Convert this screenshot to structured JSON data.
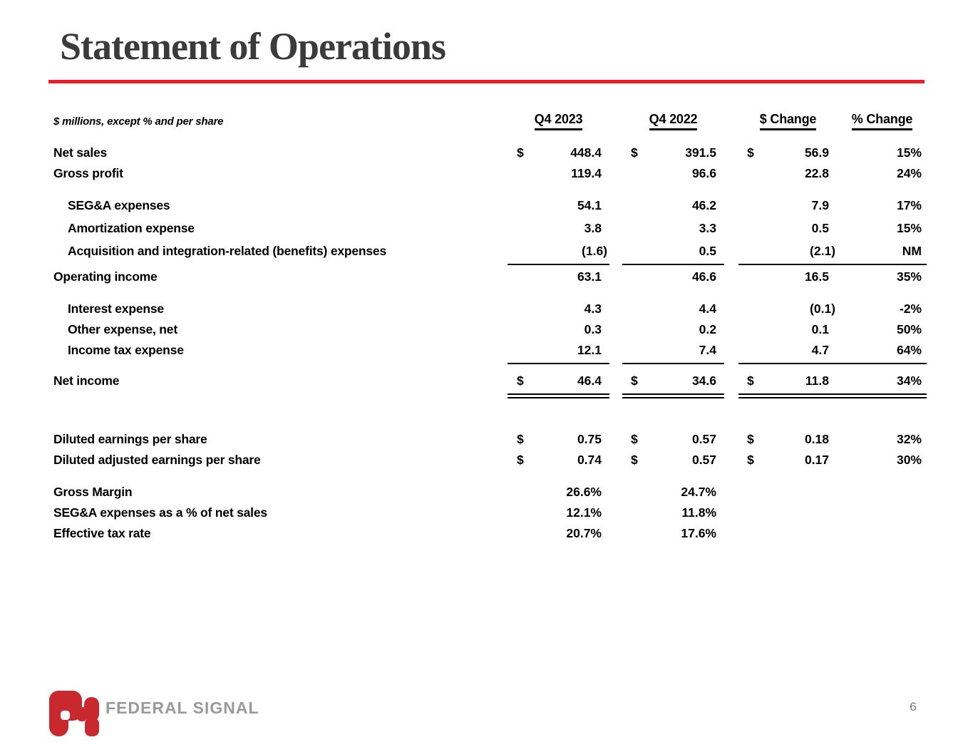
{
  "slide": {
    "title": "Statement of Operations",
    "page_number": "6",
    "accent_red": "#ee1c25",
    "logo": {
      "brand": "FEDERAL SIGNAL",
      "mark_color": "#c9292e",
      "text_color": "#9a9a9a"
    }
  },
  "table": {
    "note": "$ millions, except % and per share",
    "columns": [
      "Q4 2023",
      "Q4 2022",
      "$ Change",
      "% Change"
    ],
    "rows": [
      {
        "label": "Net sales",
        "d1": "$",
        "v1": "448.4",
        "d2": "$",
        "v2": "391.5",
        "d3": "$",
        "v3": "56.9",
        "v4": "15%"
      },
      {
        "label": "Gross profit",
        "v1": "119.4",
        "v2": "96.6",
        "v3": "22.8",
        "v4": "24%"
      },
      {
        "label": "SEG&A expenses",
        "indent": true,
        "gap": "md",
        "v1": "54.1",
        "v2": "46.2",
        "v3": "7.9",
        "v4": "17%"
      },
      {
        "label": "Amortization expense",
        "indent": true,
        "gap": "xs",
        "v1": "3.8",
        "v2": "3.3",
        "v3": "0.5",
        "v4": "15%"
      },
      {
        "label": "Acquisition and integration-related (benefits) expenses",
        "indent": true,
        "gap": "xs",
        "v1": "(1.6)",
        "v2": "0.5",
        "v3": "(2.1)",
        "v4": "NM",
        "rule_after": "single"
      },
      {
        "label": "Operating income",
        "v1": "63.1",
        "v2": "46.6",
        "v3": "16.5",
        "v4": "35%"
      },
      {
        "label": "Interest expense",
        "indent": true,
        "gap": "md",
        "v1": "4.3",
        "v2": "4.4",
        "v3": "(0.1)",
        "v4": "-2%"
      },
      {
        "label": "Other expense, net",
        "indent": true,
        "v1": "0.3",
        "v2": "0.2",
        "v3": "0.1",
        "v4": "50%"
      },
      {
        "label": "Income tax expense",
        "indent": true,
        "v1": "12.1",
        "v2": "7.4",
        "v3": "4.7",
        "v4": "64%",
        "rule_after": "single"
      },
      {
        "label": "Net income",
        "gap": "sm",
        "d1": "$",
        "v1": "46.4",
        "d2": "$",
        "v2": "34.6",
        "d3": "$",
        "v3": "11.8",
        "v4": "34%",
        "rule_after": "double"
      },
      {
        "label": "Diluted earnings per share",
        "gap": "lg",
        "d1": "$",
        "v1": "0.75",
        "d2": "$",
        "v2": "0.57",
        "d3": "$",
        "v3": "0.18",
        "v4": "32%"
      },
      {
        "label": "Diluted adjusted earnings per share",
        "d1": "$",
        "v1": "0.74",
        "d2": "$",
        "v2": "0.57",
        "d3": "$",
        "v3": "0.17",
        "v4": "30%"
      },
      {
        "label": "Gross Margin",
        "gap": "md",
        "v1": "26.6%",
        "v2": "24.7%"
      },
      {
        "label": "SEG&A expenses as a % of net sales",
        "v1": "12.1%",
        "v2": "11.8%"
      },
      {
        "label": "Effective tax rate",
        "v1": "20.7%",
        "v2": "17.6%"
      }
    ]
  }
}
